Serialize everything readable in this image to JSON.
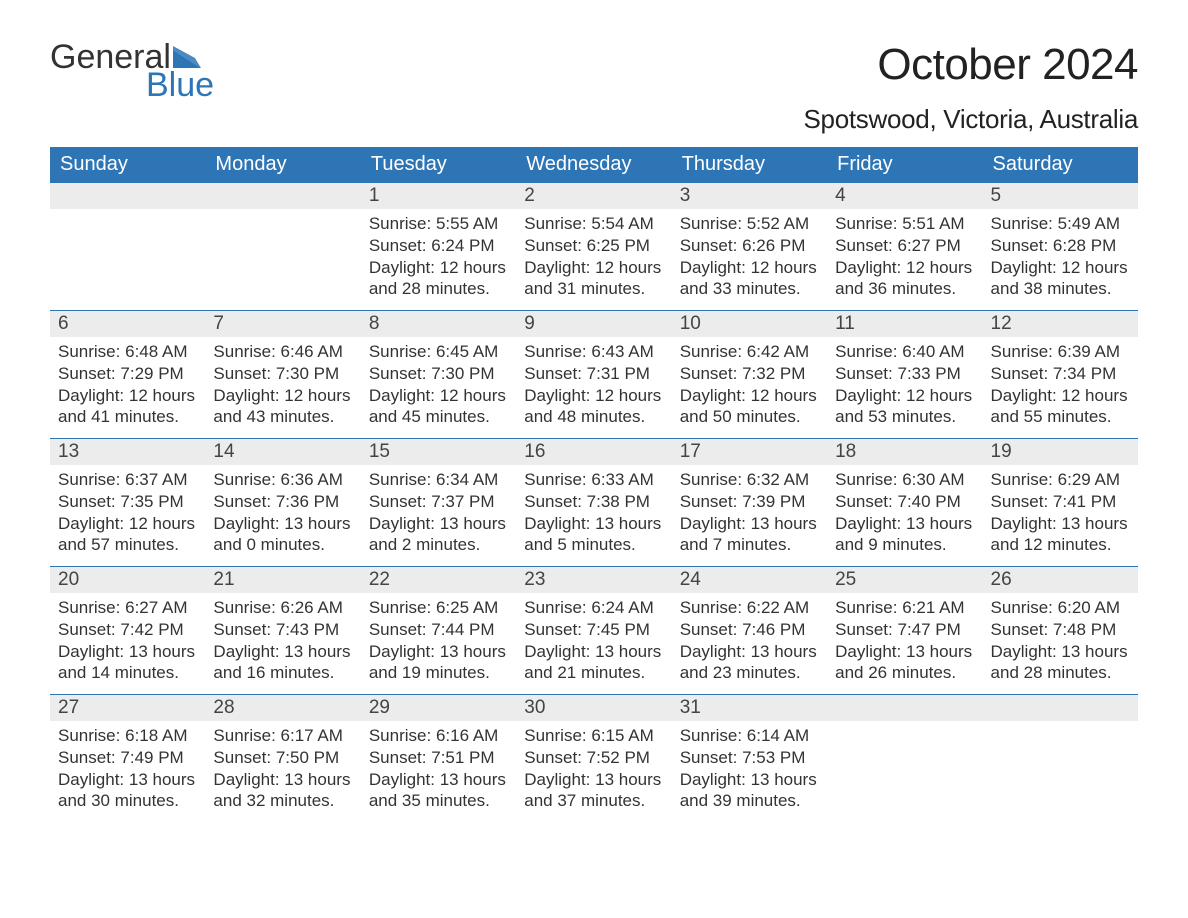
{
  "logo": {
    "word1": "General",
    "word2": "Blue",
    "flag_color": "#2e75b6"
  },
  "title": "October 2024",
  "location": "Spotswood, Victoria, Australia",
  "header_bg": "#2e75b6",
  "header_fg": "#ffffff",
  "daynum_bg": "#ececec",
  "row_border": "#2e75b6",
  "background": "#ffffff",
  "text_color": "#333333",
  "font_family": "Arial, Helvetica, sans-serif",
  "title_fontsize": 44,
  "location_fontsize": 26,
  "header_fontsize": 20,
  "daynum_fontsize": 19,
  "body_fontsize": 17,
  "columns": [
    "Sunday",
    "Monday",
    "Tuesday",
    "Wednesday",
    "Thursday",
    "Friday",
    "Saturday"
  ],
  "weeks": [
    [
      null,
      null,
      {
        "n": "1",
        "sr": "5:55 AM",
        "ss": "6:24 PM",
        "dl": "12 hours and 28 minutes."
      },
      {
        "n": "2",
        "sr": "5:54 AM",
        "ss": "6:25 PM",
        "dl": "12 hours and 31 minutes."
      },
      {
        "n": "3",
        "sr": "5:52 AM",
        "ss": "6:26 PM",
        "dl": "12 hours and 33 minutes."
      },
      {
        "n": "4",
        "sr": "5:51 AM",
        "ss": "6:27 PM",
        "dl": "12 hours and 36 minutes."
      },
      {
        "n": "5",
        "sr": "5:49 AM",
        "ss": "6:28 PM",
        "dl": "12 hours and 38 minutes."
      }
    ],
    [
      {
        "n": "6",
        "sr": "6:48 AM",
        "ss": "7:29 PM",
        "dl": "12 hours and 41 minutes."
      },
      {
        "n": "7",
        "sr": "6:46 AM",
        "ss": "7:30 PM",
        "dl": "12 hours and 43 minutes."
      },
      {
        "n": "8",
        "sr": "6:45 AM",
        "ss": "7:30 PM",
        "dl": "12 hours and 45 minutes."
      },
      {
        "n": "9",
        "sr": "6:43 AM",
        "ss": "7:31 PM",
        "dl": "12 hours and 48 minutes."
      },
      {
        "n": "10",
        "sr": "6:42 AM",
        "ss": "7:32 PM",
        "dl": "12 hours and 50 minutes."
      },
      {
        "n": "11",
        "sr": "6:40 AM",
        "ss": "7:33 PM",
        "dl": "12 hours and 53 minutes."
      },
      {
        "n": "12",
        "sr": "6:39 AM",
        "ss": "7:34 PM",
        "dl": "12 hours and 55 minutes."
      }
    ],
    [
      {
        "n": "13",
        "sr": "6:37 AM",
        "ss": "7:35 PM",
        "dl": "12 hours and 57 minutes."
      },
      {
        "n": "14",
        "sr": "6:36 AM",
        "ss": "7:36 PM",
        "dl": "13 hours and 0 minutes."
      },
      {
        "n": "15",
        "sr": "6:34 AM",
        "ss": "7:37 PM",
        "dl": "13 hours and 2 minutes."
      },
      {
        "n": "16",
        "sr": "6:33 AM",
        "ss": "7:38 PM",
        "dl": "13 hours and 5 minutes."
      },
      {
        "n": "17",
        "sr": "6:32 AM",
        "ss": "7:39 PM",
        "dl": "13 hours and 7 minutes."
      },
      {
        "n": "18",
        "sr": "6:30 AM",
        "ss": "7:40 PM",
        "dl": "13 hours and 9 minutes."
      },
      {
        "n": "19",
        "sr": "6:29 AM",
        "ss": "7:41 PM",
        "dl": "13 hours and 12 minutes."
      }
    ],
    [
      {
        "n": "20",
        "sr": "6:27 AM",
        "ss": "7:42 PM",
        "dl": "13 hours and 14 minutes."
      },
      {
        "n": "21",
        "sr": "6:26 AM",
        "ss": "7:43 PM",
        "dl": "13 hours and 16 minutes."
      },
      {
        "n": "22",
        "sr": "6:25 AM",
        "ss": "7:44 PM",
        "dl": "13 hours and 19 minutes."
      },
      {
        "n": "23",
        "sr": "6:24 AM",
        "ss": "7:45 PM",
        "dl": "13 hours and 21 minutes."
      },
      {
        "n": "24",
        "sr": "6:22 AM",
        "ss": "7:46 PM",
        "dl": "13 hours and 23 minutes."
      },
      {
        "n": "25",
        "sr": "6:21 AM",
        "ss": "7:47 PM",
        "dl": "13 hours and 26 minutes."
      },
      {
        "n": "26",
        "sr": "6:20 AM",
        "ss": "7:48 PM",
        "dl": "13 hours and 28 minutes."
      }
    ],
    [
      {
        "n": "27",
        "sr": "6:18 AM",
        "ss": "7:49 PM",
        "dl": "13 hours and 30 minutes."
      },
      {
        "n": "28",
        "sr": "6:17 AM",
        "ss": "7:50 PM",
        "dl": "13 hours and 32 minutes."
      },
      {
        "n": "29",
        "sr": "6:16 AM",
        "ss": "7:51 PM",
        "dl": "13 hours and 35 minutes."
      },
      {
        "n": "30",
        "sr": "6:15 AM",
        "ss": "7:52 PM",
        "dl": "13 hours and 37 minutes."
      },
      {
        "n": "31",
        "sr": "6:14 AM",
        "ss": "7:53 PM",
        "dl": "13 hours and 39 minutes."
      },
      null,
      null
    ]
  ],
  "labels": {
    "sunrise": "Sunrise:",
    "sunset": "Sunset:",
    "daylight": "Daylight:"
  }
}
